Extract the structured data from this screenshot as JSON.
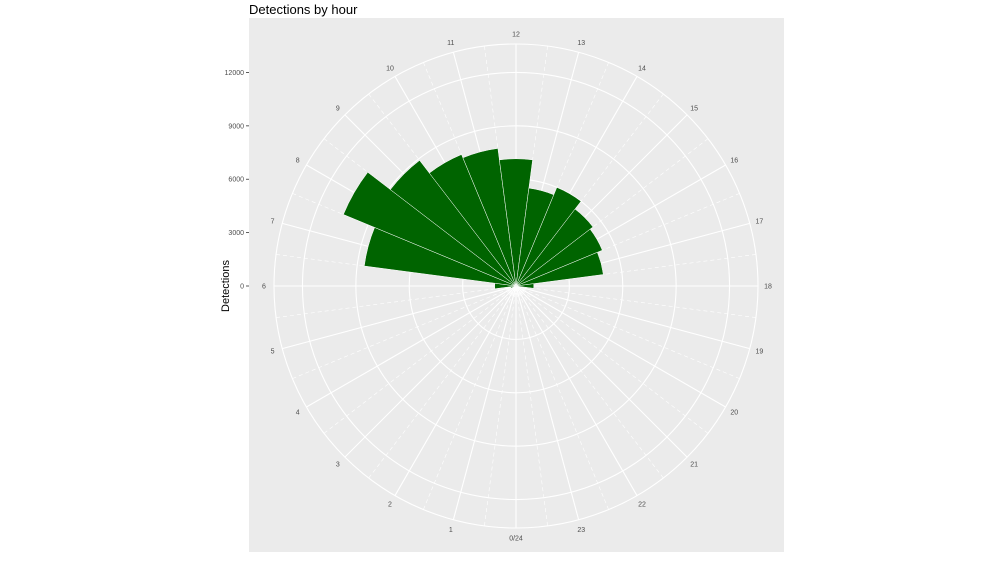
{
  "chart_data": {
    "type": "bar",
    "coord": "polar",
    "title": "Detections by hour",
    "xlabel": "",
    "ylabel": "Detections",
    "categories": [
      "0/24",
      "1",
      "2",
      "3",
      "4",
      "5",
      "6",
      "7",
      "8",
      "9",
      "10",
      "11",
      "12",
      "13",
      "14",
      "15",
      "16",
      "17",
      "18",
      "19",
      "20",
      "21",
      "22",
      "23"
    ],
    "values": [
      30,
      0,
      0,
      0,
      0,
      300,
      1200,
      8600,
      10500,
      8900,
      8000,
      7800,
      7150,
      5550,
      6000,
      5450,
      5250,
      4950,
      1000,
      0,
      0,
      0,
      0,
      0
    ],
    "y_ticks": [
      0,
      3000,
      6000,
      9000,
      12000
    ],
    "ylim": [
      0,
      13600
    ],
    "grid": true,
    "bar_color": "#006400",
    "panel_color": "#ebebeb",
    "grid_color": "#ffffff"
  }
}
